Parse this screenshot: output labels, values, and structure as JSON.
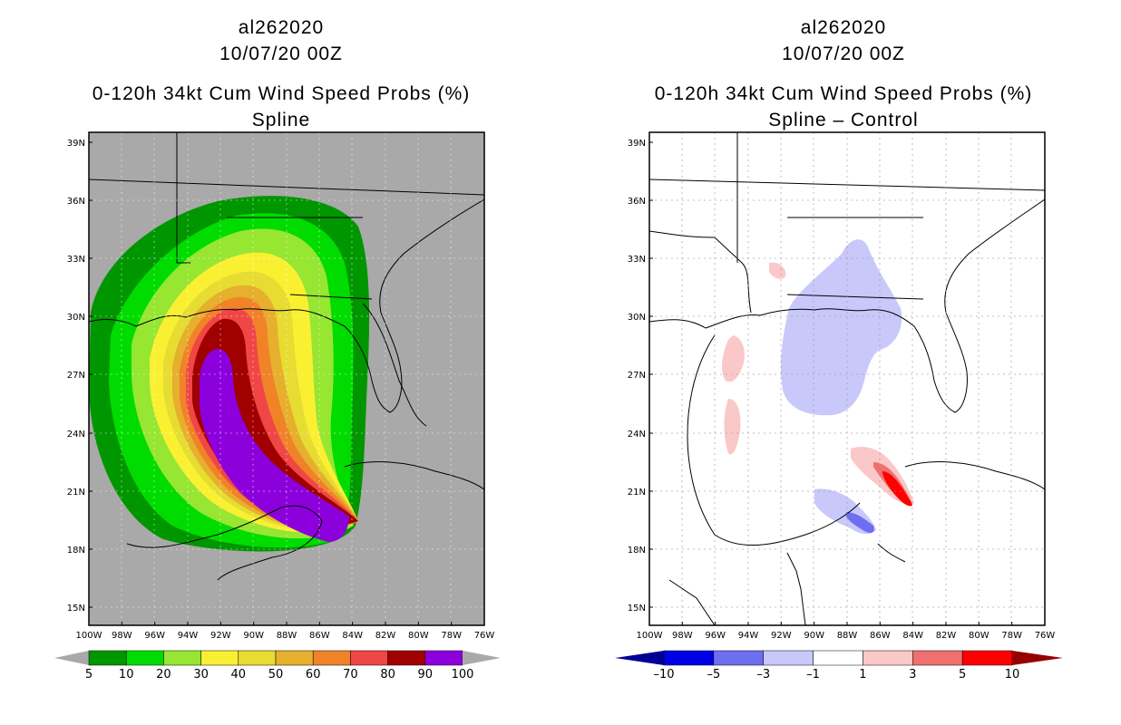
{
  "left_panel": {
    "storm_id": "al262020",
    "datetime": "10/07/20 00Z",
    "product": "0-120h 34kt Cum Wind Speed Probs (%)",
    "subtitle": "Spline",
    "colorbar": {
      "labels": [
        "5",
        "10",
        "20",
        "30",
        "40",
        "50",
        "60",
        "70",
        "80",
        "90",
        "100"
      ],
      "colors": [
        "#009600",
        "#00dc00",
        "#96e632",
        "#faf032",
        "#e6dc32",
        "#e6af2d",
        "#f08228",
        "#f04646",
        "#a00000",
        "#8c00dc"
      ]
    },
    "background_color": "#a9a9a9"
  },
  "right_panel": {
    "storm_id": "al262020",
    "datetime": "10/07/20 00Z",
    "product": "0-120h 34kt Cum Wind Speed Probs (%)",
    "subtitle": "Spline – Control",
    "colorbar": {
      "labels": [
        "–10",
        "–5",
        "–3",
        "–1",
        "1",
        "3",
        "5",
        "10"
      ],
      "colors": [
        "#0000e6",
        "#6e6ef0",
        "#c8c8fa",
        "#ffffff",
        "#fac8c8",
        "#f07070",
        "#ff0000"
      ],
      "end_low": "#000096",
      "end_high": "#960000"
    }
  },
  "axes": {
    "lat_labels": [
      "39N",
      "36N",
      "33N",
      "30N",
      "27N",
      "24N",
      "21N",
      "18N",
      "15N"
    ],
    "lon_labels": [
      "100W",
      "98W",
      "96W",
      "94W",
      "92W",
      "90W",
      "88W",
      "86W",
      "84W",
      "82W",
      "80W",
      "78W",
      "76W"
    ]
  }
}
